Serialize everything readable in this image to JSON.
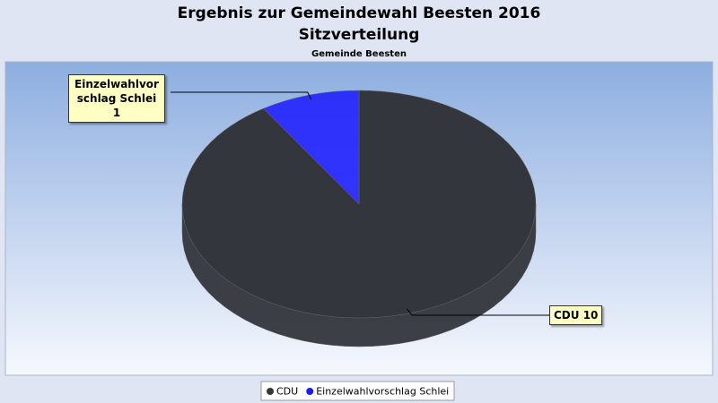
{
  "chart_data": {
    "type": "pie",
    "title": "Ergebnis zur Gemeindewahl Beesten 2016",
    "subtitle": "Sitzverteilung",
    "plot_title": "Gemeinde Beesten",
    "categories": [
      "CDU",
      "Einzelwahlvorschlag Schlei"
    ],
    "values": [
      10,
      1
    ],
    "value_labels": [
      "CDU 10",
      "Einzelwahlvorschlag Schlei 1"
    ],
    "colors": [
      "#33363c",
      "#1a1aff"
    ]
  }
}
